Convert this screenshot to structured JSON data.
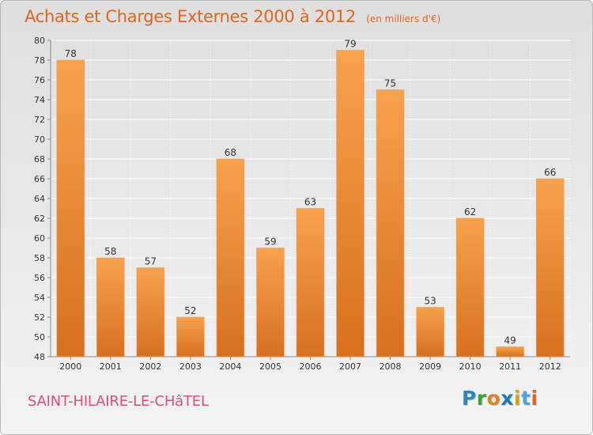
{
  "title": "Achats et Charges Externes 2000 à 2012",
  "unit_note": "(en milliers d'€)",
  "location": "SAINT-HILAIRE-LE-CHâTEL",
  "brand": {
    "letters": [
      "P",
      "r",
      "o",
      "x",
      "i",
      "t",
      "i"
    ],
    "colors": [
      "#2e86c1",
      "#3aa23a",
      "#e67e22",
      "#1f78b4",
      "#d4a017",
      "#4aa3df",
      "#e0661e"
    ]
  },
  "colors": {
    "title": "#e0661e",
    "location": "#d94f7a",
    "bar_light": "#f7a24d",
    "bar_dark": "#d8701e",
    "grid": "#ffffff",
    "axis_text": "#333333"
  },
  "chart_data": {
    "type": "bar",
    "title": "Achats et Charges Externes 2000 à 2012",
    "subtitle": "(en milliers d'€)",
    "xlabel": "",
    "ylabel": "",
    "categories": [
      "2000",
      "2001",
      "2002",
      "2003",
      "2004",
      "2005",
      "2006",
      "2007",
      "2008",
      "2009",
      "2010",
      "2011",
      "2012"
    ],
    "values": [
      78,
      58,
      57,
      52,
      68,
      59,
      63,
      79,
      75,
      53,
      62,
      49,
      66
    ],
    "ylim": [
      48,
      80
    ],
    "yticks": [
      48,
      50,
      52,
      54,
      56,
      58,
      60,
      62,
      64,
      66,
      68,
      70,
      72,
      74,
      76,
      78,
      80
    ],
    "data_labels": true,
    "grid": true,
    "legend": "none"
  }
}
